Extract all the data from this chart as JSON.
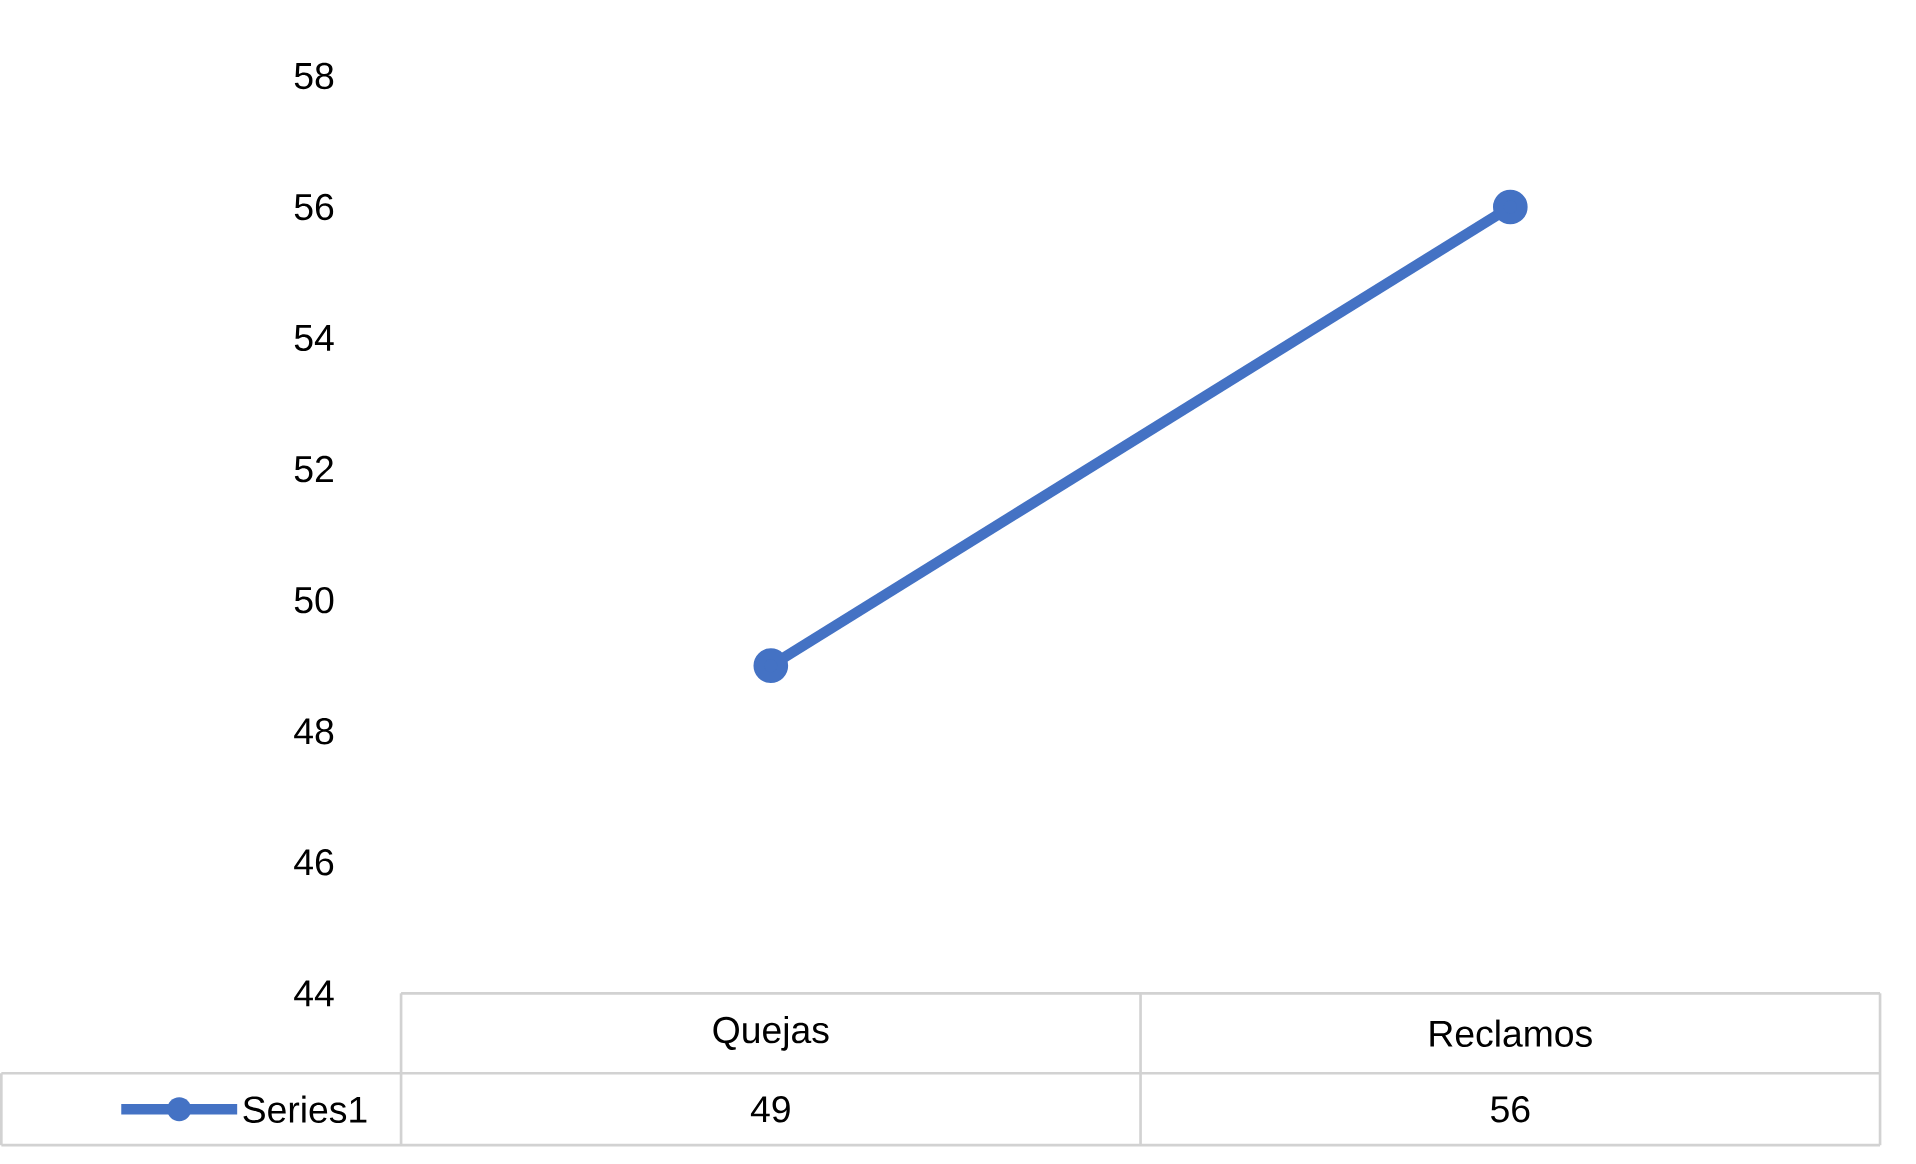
{
  "chart_data": {
    "type": "line",
    "categories": [
      "Quejas",
      "Reclamos"
    ],
    "series": [
      {
        "name": "Series1",
        "color": "#4472c4",
        "values": [
          49,
          56
        ]
      }
    ],
    "ylim": [
      44,
      58
    ],
    "yticks": [
      44,
      46,
      48,
      50,
      52,
      54,
      56,
      58
    ],
    "marker": "circle",
    "data_labels": true,
    "legend": "bottom"
  }
}
